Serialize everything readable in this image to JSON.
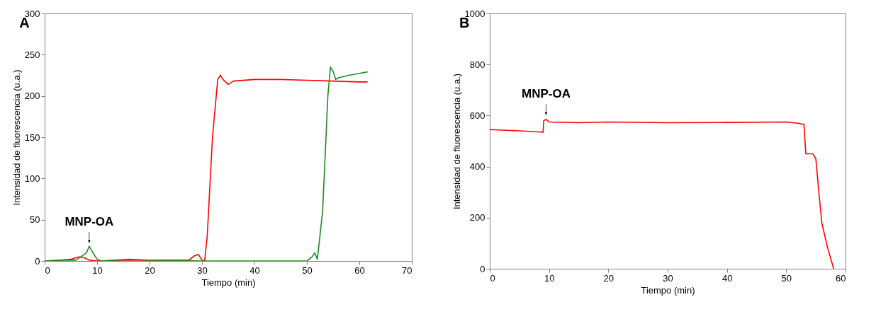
{
  "chart_data": [
    {
      "type": "line",
      "title": "A",
      "xlabel": "Tiempo (min)",
      "ylabel": "Intensidad de fluorescencia (u.a.)",
      "xlim": [
        0,
        70
      ],
      "ylim": [
        0,
        300
      ],
      "xticks": [
        0,
        10,
        20,
        30,
        40,
        50,
        60,
        70
      ],
      "yticks": [
        0,
        50,
        100,
        150,
        200,
        250,
        300
      ],
      "grid": false,
      "legend": false,
      "marker": "none",
      "line_style": "solid",
      "annotations": [
        {
          "text": "MNP-OA",
          "x": 8.5,
          "y": 18
        }
      ],
      "series": [
        {
          "color": "#ff0000",
          "x": [
            0,
            3,
            5,
            6.5,
            7.5,
            8.5,
            10,
            15,
            20,
            25,
            27.5,
            28.5,
            29.3,
            30,
            30.5,
            31,
            32,
            33,
            33.5,
            34,
            35,
            36,
            40,
            45,
            50,
            55,
            60,
            61.5
          ],
          "values": [
            0,
            1,
            2,
            5,
            4,
            1,
            0,
            1,
            1,
            1,
            1,
            6,
            8,
            1,
            0,
            30,
            150,
            220,
            225,
            220,
            214,
            218,
            220,
            220,
            219,
            218,
            217,
            217
          ]
        },
        {
          "color": "#1e8c1e",
          "x": [
            0,
            4,
            6,
            8,
            8.5,
            9,
            10,
            11,
            16,
            20,
            30,
            40,
            50,
            51,
            51.5,
            52,
            53,
            54,
            54.5,
            55,
            55.5,
            56,
            58,
            61.5
          ],
          "values": [
            0,
            1,
            1,
            10,
            18,
            12,
            2,
            0,
            2,
            1,
            0,
            0,
            0,
            5,
            10,
            2,
            60,
            200,
            235,
            230,
            220,
            222,
            225,
            229
          ]
        }
      ]
    },
    {
      "type": "line",
      "title": "B",
      "xlabel": "Tiempo (min)",
      "ylabel": "Intensidad de fluorescencia (u.a.)",
      "xlim": [
        0,
        60
      ],
      "ylim": [
        0,
        1000
      ],
      "xticks": [
        0,
        10,
        20,
        30,
        40,
        50,
        60
      ],
      "yticks": [
        0,
        200,
        400,
        600,
        800,
        1000
      ],
      "grid": false,
      "legend": false,
      "marker": "none",
      "line_style": "solid",
      "annotations": [
        {
          "text": "MNP-OA",
          "x": 9.5,
          "y": 590
        }
      ],
      "series": [
        {
          "color": "#ff0000",
          "x": [
            0,
            5,
            9,
            9.1,
            9.5,
            10,
            15,
            20,
            30,
            40,
            50,
            52,
            53,
            53.3,
            54.5,
            55,
            55.5,
            56,
            57,
            57.5,
            58
          ],
          "values": [
            545,
            540,
            535,
            580,
            585,
            575,
            572,
            575,
            572,
            573,
            575,
            570,
            565,
            450,
            450,
            430,
            300,
            180,
            80,
            40,
            0
          ]
        }
      ]
    }
  ]
}
